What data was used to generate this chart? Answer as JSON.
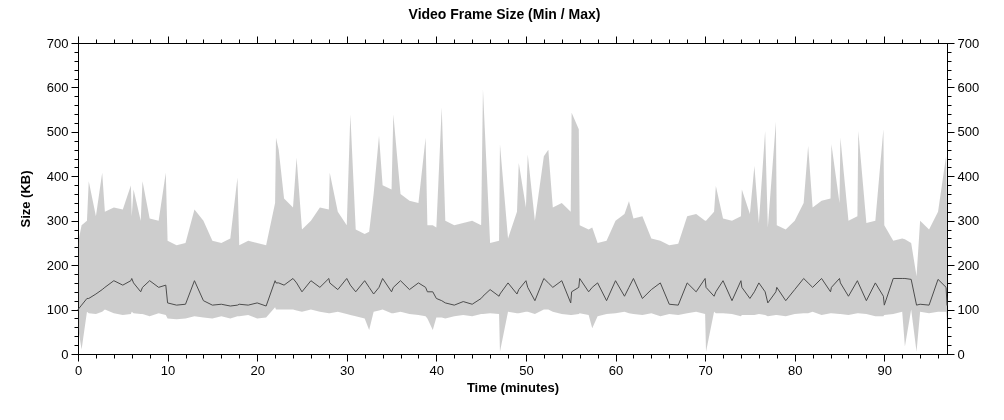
{
  "chart_data": {
    "type": "line",
    "title": "Video Frame Size (Min / Max)",
    "xlabel": "Time (minutes)",
    "ylabel": "Size (KB)",
    "xlim": [
      0,
      97
    ],
    "ylim": [
      0,
      700
    ],
    "y2lim": [
      0,
      700
    ],
    "xticks": [
      0,
      {
        "value": 2,
        "label": null
      },
      {
        "value": 4,
        "label": null
      },
      {
        "value": 6,
        "label": null
      },
      {
        "value": 8,
        "label": null
      },
      10,
      {
        "value": 12,
        "label": null
      },
      {
        "value": 14,
        "label": null
      },
      {
        "value": 16,
        "label": null
      },
      {
        "value": 18,
        "label": null
      },
      20,
      {
        "value": 22,
        "label": null
      },
      {
        "value": 24,
        "label": null
      },
      {
        "value": 26,
        "label": null
      },
      {
        "value": 28,
        "label": null
      },
      30,
      {
        "value": 32,
        "label": null
      },
      {
        "value": 34,
        "label": null
      },
      {
        "value": 36,
        "label": null
      },
      {
        "value": 38,
        "label": null
      },
      40,
      {
        "value": 42,
        "label": null
      },
      {
        "value": 44,
        "label": null
      },
      {
        "value": 46,
        "label": null
      },
      {
        "value": 48,
        "label": null
      },
      50,
      {
        "value": 52,
        "label": null
      },
      {
        "value": 54,
        "label": null
      },
      {
        "value": 56,
        "label": null
      },
      {
        "value": 58,
        "label": null
      },
      60,
      {
        "value": 62,
        "label": null
      },
      {
        "value": 64,
        "label": null
      },
      {
        "value": 66,
        "label": null
      },
      {
        "value": 68,
        "label": null
      },
      70,
      {
        "value": 72,
        "label": null
      },
      {
        "value": 74,
        "label": null
      },
      {
        "value": 76,
        "label": null
      },
      {
        "value": 78,
        "label": null
      },
      80,
      {
        "value": 82,
        "label": null
      },
      {
        "value": 84,
        "label": null
      },
      {
        "value": 86,
        "label": null
      },
      {
        "value": 88,
        "label": null
      },
      90,
      {
        "value": 92,
        "label": null
      },
      {
        "value": 94,
        "label": null
      },
      {
        "value": 96,
        "label": null
      }
    ],
    "yticks": [
      0,
      {
        "value": 20,
        "label": null
      },
      {
        "value": 40,
        "label": null
      },
      {
        "value": 60,
        "label": null
      },
      {
        "value": 80,
        "label": null
      },
      100,
      {
        "value": 120,
        "label": null
      },
      {
        "value": 140,
        "label": null
      },
      {
        "value": 160,
        "label": null
      },
      {
        "value": 180,
        "label": null
      },
      200,
      {
        "value": 220,
        "label": null
      },
      {
        "value": 240,
        "label": null
      },
      {
        "value": 260,
        "label": null
      },
      {
        "value": 280,
        "label": null
      },
      300,
      {
        "value": 320,
        "label": null
      },
      {
        "value": 340,
        "label": null
      },
      {
        "value": 360,
        "label": null
      },
      {
        "value": 380,
        "label": null
      },
      400,
      {
        "value": 420,
        "label": null
      },
      {
        "value": 440,
        "label": null
      },
      {
        "value": 460,
        "label": null
      },
      {
        "value": 480,
        "label": null
      },
      500,
      {
        "value": 520,
        "label": null
      },
      {
        "value": 540,
        "label": null
      },
      {
        "value": 560,
        "label": null
      },
      {
        "value": 580,
        "label": null
      },
      600,
      {
        "value": 620,
        "label": null
      },
      {
        "value": 640,
        "label": null
      },
      {
        "value": 660,
        "label": null
      },
      {
        "value": 680,
        "label": null
      },
      700
    ],
    "y2ticks": [
      0,
      {
        "value": 20,
        "label": null
      },
      {
        "value": 40,
        "label": null
      },
      {
        "value": 60,
        "label": null
      },
      {
        "value": 80,
        "label": null
      },
      100,
      {
        "value": 120,
        "label": null
      },
      {
        "value": 140,
        "label": null
      },
      {
        "value": 160,
        "label": null
      },
      {
        "value": 180,
        "label": null
      },
      200,
      {
        "value": 220,
        "label": null
      },
      {
        "value": 240,
        "label": null
      },
      {
        "value": 260,
        "label": null
      },
      {
        "value": 280,
        "label": null
      },
      300,
      {
        "value": 320,
        "label": null
      },
      {
        "value": 340,
        "label": null
      },
      {
        "value": 360,
        "label": null
      },
      {
        "value": 380,
        "label": null
      },
      400,
      {
        "value": 420,
        "label": null
      },
      {
        "value": 440,
        "label": null
      },
      {
        "value": 460,
        "label": null
      },
      {
        "value": 480,
        "label": null
      },
      500,
      {
        "value": 520,
        "label": null
      },
      {
        "value": 540,
        "label": null
      },
      {
        "value": 560,
        "label": null
      },
      {
        "value": 580,
        "label": null
      },
      600,
      {
        "value": 620,
        "label": null
      },
      {
        "value": 640,
        "label": null
      },
      {
        "value": 660,
        "label": null
      },
      {
        "value": 680,
        "label": null
      },
      700
    ],
    "x": [
      0,
      0.4,
      1,
      1.2,
      2,
      2.7,
      3,
      4,
      5,
      5.9,
      6,
      6.2,
      7,
      7.2,
      8,
      9,
      9.8,
      10,
      11,
      12,
      13,
      14,
      15,
      16,
      17,
      17.8,
      18,
      19,
      20,
      21,
      22,
      22.1,
      22.4,
      23,
      24,
      24.4,
      25,
      26,
      27,
      28,
      28.1,
      29,
      30,
      30.4,
      31,
      32,
      32.5,
      33,
      33.6,
      34,
      35,
      35.2,
      36,
      37,
      38,
      38.8,
      39,
      39.6,
      40,
      40.6,
      41,
      42,
      43,
      44,
      45,
      45.2,
      46,
      47,
      47.1,
      48,
      49,
      49.2,
      50,
      50.2,
      51,
      52,
      52.5,
      53,
      54,
      55,
      55.1,
      55.9,
      56,
      57,
      57.4,
      58,
      59,
      60,
      61,
      61.5,
      62,
      63,
      64,
      65,
      66,
      67,
      68,
      69,
      70,
      70.1,
      71,
      71.2,
      72,
      73,
      74,
      74.1,
      75,
      75.5,
      76,
      76.7,
      77,
      77.9,
      78,
      79,
      80,
      81,
      81.5,
      82,
      83,
      84,
      84.1,
      85,
      85.1,
      86,
      87,
      87.1,
      88,
      89,
      89.9,
      90,
      91,
      92,
      92.3,
      93,
      93.6,
      94,
      95,
      96,
      96.9,
      97
    ],
    "series": [
      {
        "color": "#4d4d4d",
        "values": [
          100,
          110,
          125,
          125,
          135,
          145,
          150,
          165,
          155,
          165,
          170,
          160,
          140,
          150,
          165,
          150,
          155,
          115,
          110,
          112,
          165,
          120,
          110,
          112,
          108,
          110,
          112,
          110,
          115,
          108,
          165,
          160,
          160,
          155,
          170,
          160,
          140,
          165,
          150,
          170,
          160,
          145,
          170,
          155,
          140,
          165,
          150,
          135,
          150,
          170,
          140,
          150,
          165,
          145,
          160,
          150,
          140,
          140,
          125,
          120,
          115,
          110,
          118,
          112,
          125,
          130,
          145,
          130,
          135,
          160,
          135,
          145,
          165,
          150,
          120,
          170,
          160,
          150,
          165,
          115,
          140,
          150,
          170,
          140,
          150,
          160,
          120,
          165,
          130,
          150,
          170,
          125,
          145,
          160,
          112,
          110,
          160,
          140,
          170,
          150,
          130,
          140,
          165,
          120,
          165,
          150,
          125,
          140,
          160,
          140,
          115,
          140,
          150,
          120,
          145,
          170,
          160,
          150,
          170,
          140,
          150,
          170,
          160,
          130,
          165,
          160,
          120,
          160,
          130,
          110,
          170,
          170,
          170,
          168,
          110,
          112,
          110,
          168,
          150,
          110
        ],
        "lower": [
          60,
          10,
          95,
          92,
          90,
          95,
          100,
          92,
          88,
          90,
          95,
          92,
          90,
          90,
          85,
          92,
          88,
          80,
          78,
          80,
          85,
          82,
          80,
          85,
          80,
          85,
          85,
          88,
          80,
          82,
          105,
          100,
          100,
          100,
          100,
          98,
          95,
          100,
          95,
          92,
          92,
          95,
          90,
          88,
          85,
          80,
          54,
          95,
          98,
          100,
          92,
          92,
          95,
          90,
          88,
          85,
          80,
          54,
          82,
          82,
          80,
          85,
          88,
          85,
          90,
          90,
          92,
          90,
          5,
          95,
          92,
          92,
          95,
          95,
          90,
          100,
          100,
          95,
          90,
          88,
          88,
          90,
          92,
          88,
          58,
          85,
          90,
          92,
          95,
          92,
          90,
          88,
          92,
          85,
          90,
          88,
          92,
          95,
          90,
          5,
          95,
          92,
          92,
          90,
          85,
          88,
          88,
          88,
          90,
          88,
          85,
          88,
          88,
          85,
          90,
          92,
          92,
          95,
          88,
          92,
          92,
          90,
          90,
          88,
          92,
          92,
          90,
          85,
          85,
          88,
          90,
          95,
          17,
          100,
          5,
          95,
          92,
          95,
          95,
          75
        ],
        "upper": [
          250,
          290,
          300,
          389,
          310,
          408,
          320,
          330,
          325,
          379,
          310,
          370,
          300,
          389,
          305,
          300,
          408,
          255,
          245,
          250,
          325,
          300,
          255,
          250,
          260,
          397,
          245,
          255,
          250,
          245,
          340,
          487,
          460,
          350,
          330,
          442,
          280,
          300,
          330,
          325,
          408,
          320,
          290,
          539,
          280,
          270,
          275,
          360,
          491,
          380,
          370,
          539,
          360,
          345,
          340,
          487,
          290,
          290,
          285,
          555,
          300,
          290,
          295,
          300,
          290,
          596,
          250,
          255,
          472,
          260,
          320,
          430,
          330,
          449,
          300,
          445,
          460,
          330,
          340,
          320,
          543,
          506,
          290,
          280,
          285,
          250,
          255,
          300,
          315,
          344,
          305,
          310,
          260,
          255,
          245,
          248,
          310,
          315,
          300,
          300,
          320,
          378,
          305,
          300,
          310,
          370,
          315,
          423,
          295,
          502,
          285,
          522,
          290,
          280,
          300,
          340,
          468,
          330,
          345,
          350,
          472,
          340,
          487,
          300,
          310,
          502,
          295,
          300,
          506,
          290,
          255,
          260,
          258,
          250,
          175,
          300,
          280,
          320,
          445,
          330
        ]
      }
    ]
  }
}
